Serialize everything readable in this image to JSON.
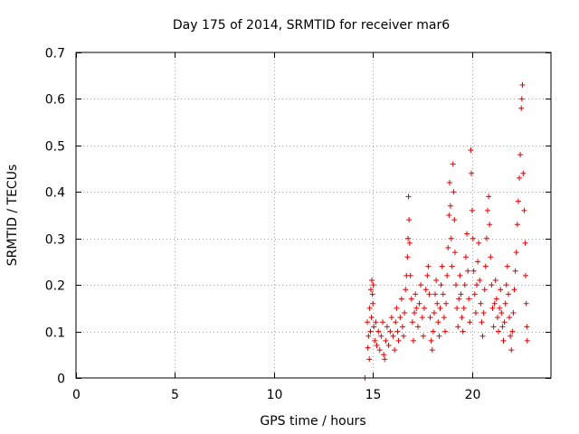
{
  "chart_data": {
    "type": "scatter",
    "title": "Day 175 of 2014, SRMTID for receiver mar6",
    "xlabel": "GPS time / hours",
    "ylabel": "SRMTID / TECUs",
    "xlim": [
      0,
      24
    ],
    "ylim": [
      0,
      0.7
    ],
    "x_ticks": [
      0,
      5,
      10,
      15,
      20
    ],
    "y_ticks": [
      0,
      0.1,
      0.2,
      0.3,
      0.4,
      0.5,
      0.6,
      0.7
    ],
    "x_tick_labels": [
      "0",
      "5",
      "10",
      "15",
      "20"
    ],
    "y_tick_labels": [
      "0",
      "0.1",
      "0.2",
      "0.3",
      "0.4",
      "0.5",
      "0.6",
      "0.7"
    ],
    "grid": true,
    "marker": "plus",
    "color": "#e00000",
    "series": [
      {
        "name": "SRMTID",
        "points": [
          [
            14.6,
            0.0
          ],
          [
            14.72,
            0.12
          ],
          [
            14.78,
            0.09
          ],
          [
            14.84,
            0.15
          ],
          [
            14.9,
            0.19
          ],
          [
            14.95,
            0.21
          ],
          [
            15.0,
            0.16
          ],
          [
            15.05,
            0.11
          ],
          [
            15.1,
            0.08
          ],
          [
            14.75,
            0.065
          ],
          [
            14.82,
            0.04
          ],
          [
            14.88,
            0.1
          ],
          [
            14.93,
            0.13
          ],
          [
            14.98,
            0.18
          ],
          [
            15.02,
            0.2
          ],
          [
            15.15,
            0.12
          ],
          [
            15.2,
            0.07
          ],
          [
            15.28,
            0.1
          ],
          [
            15.35,
            0.06
          ],
          [
            15.42,
            0.09
          ],
          [
            15.5,
            0.12
          ],
          [
            15.55,
            0.05
          ],
          [
            15.6,
            0.04
          ],
          [
            15.65,
            0.08
          ],
          [
            15.72,
            0.11
          ],
          [
            15.8,
            0.07
          ],
          [
            15.88,
            0.1
          ],
          [
            15.95,
            0.13
          ],
          [
            16.02,
            0.09
          ],
          [
            16.1,
            0.06
          ],
          [
            16.15,
            0.12
          ],
          [
            16.2,
            0.15
          ],
          [
            16.25,
            0.1
          ],
          [
            16.3,
            0.08
          ],
          [
            16.38,
            0.13
          ],
          [
            16.45,
            0.17
          ],
          [
            16.5,
            0.11
          ],
          [
            16.55,
            0.09
          ],
          [
            16.6,
            0.14
          ],
          [
            16.65,
            0.19
          ],
          [
            16.7,
            0.22
          ],
          [
            16.75,
            0.26
          ],
          [
            16.78,
            0.3
          ],
          [
            16.8,
            0.39
          ],
          [
            16.83,
            0.34
          ],
          [
            16.86,
            0.29
          ],
          [
            16.9,
            0.22
          ],
          [
            16.95,
            0.17
          ],
          [
            17.0,
            0.12
          ],
          [
            17.05,
            0.08
          ],
          [
            17.1,
            0.14
          ],
          [
            17.15,
            0.18
          ],
          [
            17.2,
            0.15
          ],
          [
            17.28,
            0.11
          ],
          [
            17.35,
            0.16
          ],
          [
            17.42,
            0.2
          ],
          [
            17.5,
            0.13
          ],
          [
            17.55,
            0.09
          ],
          [
            17.6,
            0.15
          ],
          [
            17.68,
            0.19
          ],
          [
            17.75,
            0.22
          ],
          [
            17.8,
            0.24
          ],
          [
            17.85,
            0.18
          ],
          [
            17.9,
            0.13
          ],
          [
            17.95,
            0.08
          ],
          [
            18.0,
            0.06
          ],
          [
            18.05,
            0.1
          ],
          [
            18.1,
            0.14
          ],
          [
            18.15,
            0.18
          ],
          [
            18.2,
            0.21
          ],
          [
            18.25,
            0.16
          ],
          [
            18.3,
            0.12
          ],
          [
            18.35,
            0.09
          ],
          [
            18.4,
            0.15
          ],
          [
            18.45,
            0.2
          ],
          [
            18.5,
            0.24
          ],
          [
            18.55,
            0.18
          ],
          [
            18.6,
            0.13
          ],
          [
            18.65,
            0.1
          ],
          [
            18.7,
            0.16
          ],
          [
            18.75,
            0.22
          ],
          [
            18.8,
            0.28
          ],
          [
            18.85,
            0.35
          ],
          [
            18.88,
            0.42
          ],
          [
            18.92,
            0.37
          ],
          [
            18.96,
            0.3
          ],
          [
            19.0,
            0.24
          ],
          [
            19.05,
            0.46
          ],
          [
            19.08,
            0.4
          ],
          [
            19.12,
            0.34
          ],
          [
            19.15,
            0.27
          ],
          [
            19.2,
            0.2
          ],
          [
            19.25,
            0.15
          ],
          [
            19.3,
            0.11
          ],
          [
            19.35,
            0.17
          ],
          [
            19.4,
            0.22
          ],
          [
            19.45,
            0.18
          ],
          [
            19.5,
            0.13
          ],
          [
            19.55,
            0.1
          ],
          [
            19.6,
            0.15
          ],
          [
            19.65,
            0.2
          ],
          [
            19.7,
            0.26
          ],
          [
            19.75,
            0.31
          ],
          [
            19.8,
            0.23
          ],
          [
            19.85,
            0.17
          ],
          [
            19.9,
            0.12
          ],
          [
            19.95,
            0.49
          ],
          [
            19.98,
            0.44
          ],
          [
            20.02,
            0.36
          ],
          [
            20.06,
            0.3
          ],
          [
            20.1,
            0.23
          ],
          [
            20.15,
            0.18
          ],
          [
            20.2,
            0.14
          ],
          [
            20.25,
            0.2
          ],
          [
            20.3,
            0.25
          ],
          [
            20.35,
            0.29
          ],
          [
            20.4,
            0.21
          ],
          [
            20.45,
            0.16
          ],
          [
            20.5,
            0.12
          ],
          [
            20.55,
            0.09
          ],
          [
            20.6,
            0.14
          ],
          [
            20.65,
            0.19
          ],
          [
            20.7,
            0.24
          ],
          [
            20.75,
            0.3
          ],
          [
            20.8,
            0.36
          ],
          [
            20.85,
            0.39
          ],
          [
            20.9,
            0.33
          ],
          [
            20.95,
            0.26
          ],
          [
            21.0,
            0.2
          ],
          [
            21.05,
            0.15
          ],
          [
            21.1,
            0.11
          ],
          [
            21.15,
            0.16
          ],
          [
            21.2,
            0.21
          ],
          [
            21.25,
            0.17
          ],
          [
            21.3,
            0.13
          ],
          [
            21.35,
            0.1
          ],
          [
            21.4,
            0.15
          ],
          [
            21.45,
            0.19
          ],
          [
            21.5,
            0.14
          ],
          [
            21.55,
            0.11
          ],
          [
            21.6,
            0.08
          ],
          [
            21.65,
            0.12
          ],
          [
            21.7,
            0.16
          ],
          [
            21.75,
            0.2
          ],
          [
            21.8,
            0.24
          ],
          [
            21.85,
            0.18
          ],
          [
            21.9,
            0.13
          ],
          [
            21.95,
            0.09
          ],
          [
            22.0,
            0.06
          ],
          [
            22.05,
            0.1
          ],
          [
            22.1,
            0.14
          ],
          [
            22.15,
            0.19
          ],
          [
            22.2,
            0.23
          ],
          [
            22.25,
            0.27
          ],
          [
            22.3,
            0.33
          ],
          [
            22.35,
            0.38
          ],
          [
            22.4,
            0.43
          ],
          [
            22.45,
            0.48
          ],
          [
            22.5,
            0.58
          ],
          [
            22.53,
            0.6
          ],
          [
            22.56,
            0.63
          ],
          [
            22.6,
            0.44
          ],
          [
            22.65,
            0.36
          ],
          [
            22.7,
            0.29
          ],
          [
            22.72,
            0.22
          ],
          [
            22.75,
            0.16
          ],
          [
            22.78,
            0.11
          ],
          [
            22.8,
            0.08
          ]
        ]
      }
    ]
  }
}
